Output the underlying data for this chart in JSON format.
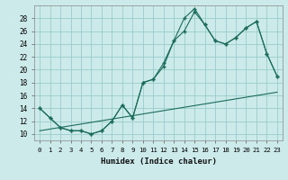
{
  "title": "",
  "xlabel": "Humidex (Indice chaleur)",
  "bg_color": "#cceaea",
  "grid_color": "#99cccc",
  "line_color": "#1a6b5a",
  "xlim": [
    -0.5,
    23.5
  ],
  "ylim": [
    9,
    30
  ],
  "yticks": [
    10,
    12,
    14,
    16,
    18,
    20,
    22,
    24,
    26,
    28
  ],
  "xticks": [
    0,
    1,
    2,
    3,
    4,
    5,
    6,
    7,
    8,
    9,
    10,
    11,
    12,
    13,
    14,
    15,
    16,
    17,
    18,
    19,
    20,
    21,
    22,
    23
  ],
  "line1_x": [
    0,
    1,
    2,
    3,
    4,
    5,
    6,
    7,
    8,
    9,
    10,
    11,
    12,
    13,
    14,
    15,
    16,
    17,
    18,
    19,
    20,
    21,
    22,
    23
  ],
  "line1_y": [
    14,
    12.5,
    11,
    10.5,
    10.5,
    10,
    10.5,
    12,
    14.5,
    12.5,
    18,
    18.5,
    21,
    24.5,
    26,
    29,
    27,
    24.5,
    24,
    25,
    26.5,
    27.5,
    22.5,
    19
  ],
  "line2_x": [
    0,
    1,
    2,
    3,
    4,
    5,
    6,
    7,
    8,
    9,
    10,
    11,
    12,
    13,
    14,
    15,
    16,
    17,
    18,
    19,
    20,
    21,
    22,
    23
  ],
  "line2_y": [
    14,
    12.5,
    11,
    10.5,
    10.5,
    10,
    10.5,
    12,
    14.5,
    12.5,
    18,
    18.5,
    20.5,
    24.5,
    28,
    29.5,
    27,
    24.5,
    24,
    25,
    26.5,
    27.5,
    22.5,
    19
  ],
  "line3_x": [
    0,
    23
  ],
  "line3_y": [
    10.5,
    16.5
  ]
}
